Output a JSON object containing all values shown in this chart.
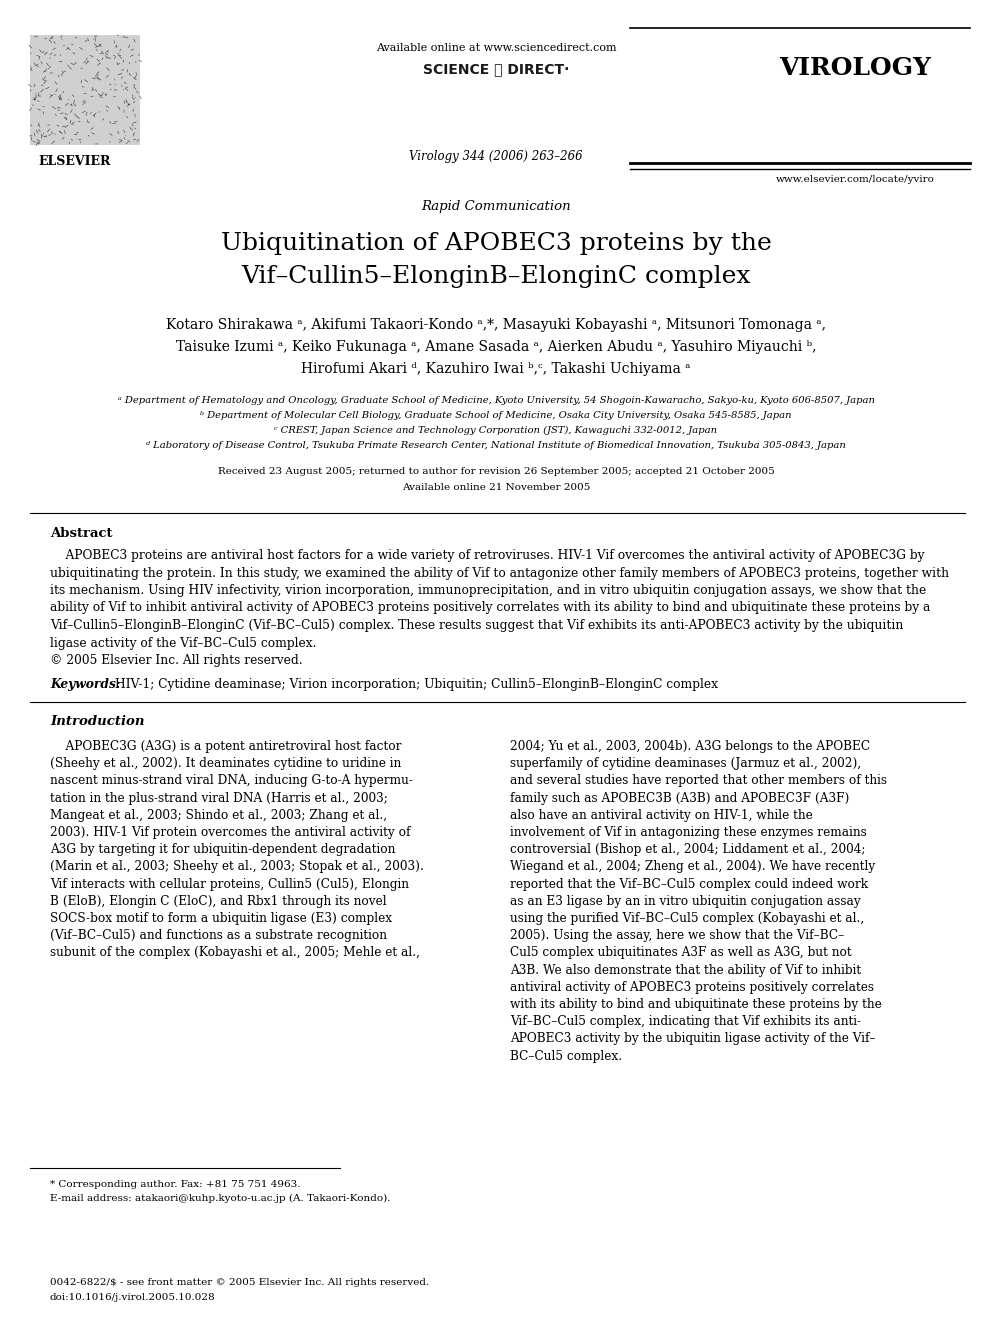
{
  "bg_color": "#ffffff",
  "fig_width": 9.92,
  "fig_height": 13.23,
  "available_online_text": "Available online at www.sciencedirect.com",
  "sciencedirect_text": "SCIENCE ⓐ DIRECT·",
  "virology_text": "VIROLOGY",
  "journal_ref_text": "Virology 344 (2006) 263–266",
  "website_text": "www.elsevier.com/locate/yviro",
  "elsevier_text": "ELSEVIER",
  "rapid_comm_text": "Rapid Communication",
  "title_line1": "Ubiquitination of APOBEC3 proteins by the",
  "title_line2": "Vif–Cullin5–ElonginB–ElonginC complex",
  "authors_line1": "Kotaro Shirakawa ᵃ, Akifumi Takaori-Kondo ᵃ,*, Masayuki Kobayashi ᵃ, Mitsunori Tomonaga ᵃ,",
  "authors_line2": "Taisuke Izumi ᵃ, Keiko Fukunaga ᵃ, Amane Sasada ᵃ, Aierken Abudu ᵃ, Yasuhiro Miyauchi ᵇ,",
  "authors_line3": "Hirofumi Akari ᵈ, Kazuhiro Iwai ᵇ,ᶜ, Takashi Uchiyama ᵃ",
  "affil_a": "ᵃ Department of Hematology and Oncology, Graduate School of Medicine, Kyoto University, 54 Shogoin-Kawaracho, Sakyo-ku, Kyoto 606-8507, Japan",
  "affil_b": "ᵇ Department of Molecular Cell Biology, Graduate School of Medicine, Osaka City University, Osaka 545-8585, Japan",
  "affil_c": "ᶜ CREST, Japan Science and Technology Corporation (JST), Kawaguchi 332-0012, Japan",
  "affil_d": "ᵈ Laboratory of Disease Control, Tsukuba Primate Research Center, National Institute of Biomedical Innovation, Tsukuba 305-0843, Japan",
  "received_text": "Received 23 August 2005; returned to author for revision 26 September 2005; accepted 21 October 2005",
  "available_text2": "Available online 21 November 2005",
  "abstract_label": "Abstract",
  "abstract_text": "    APOBEC3 proteins are antiviral host factors for a wide variety of retroviruses. HIV-1 Vif overcomes the antiviral activity of APOBEC3G by\nubiquitinating the protein. In this study, we examined the ability of Vif to antagonize other family members of APOBEC3 proteins, together with\nits mechanism. Using HIV infectivity, virion incorporation, immunoprecipitation, and in vitro ubiquitin conjugation assays, we show that the\nability of Vif to inhibit antiviral activity of APOBEC3 proteins positively correlates with its ability to bind and ubiquitinate these proteins by a\nVif–Cullin5–ElonginB–ElonginC (Vif–BC–Cul5) complex. These results suggest that Vif exhibits its anti-APOBEC3 activity by the ubiquitin\nligase activity of the Vif–BC–Cul5 complex.\n© 2005 Elsevier Inc. All rights reserved.",
  "keywords_label": "Keywords: ",
  "keywords_text": "HIV-1; Cytidine deaminase; Virion incorporation; Ubiquitin; Cullin5–ElonginB–ElonginC complex",
  "intro_label": "Introduction",
  "intro_left_text": "    APOBEC3G (A3G) is a potent antiretroviral host factor\n(Sheehy et al., 2002). It deaminates cytidine to uridine in\nnascent minus-strand viral DNA, inducing G-to-A hypermu-\ntation in the plus-strand viral DNA (Harris et al., 2003;\nMangeat et al., 2003; Shindo et al., 2003; Zhang et al.,\n2003). HIV-1 Vif protein overcomes the antiviral activity of\nA3G by targeting it for ubiquitin-dependent degradation\n(Marin et al., 2003; Sheehy et al., 2003; Stopak et al., 2003).\nVif interacts with cellular proteins, Cullin5 (Cul5), Elongin\nB (EloB), Elongin C (EloC), and Rbx1 through its novel\nSOCS-box motif to form a ubiquitin ligase (E3) complex\n(Vif–BC–Cul5) and functions as a substrate recognition\nsubunit of the complex (Kobayashi et al., 2005; Mehle et al.,",
  "intro_right_text": "2004; Yu et al., 2003, 2004b). A3G belongs to the APOBEC\nsuperfamily of cytidine deaminases (Jarmuz et al., 2002),\nand several studies have reported that other members of this\nfamily such as APOBEC3B (A3B) and APOBEC3F (A3F)\nalso have an antiviral activity on HIV-1, while the\ninvolvement of Vif in antagonizing these enzymes remains\ncontroversial (Bishop et al., 2004; Liddament et al., 2004;\nWiegand et al., 2004; Zheng et al., 2004). We have recently\nreported that the Vif–BC–Cul5 complex could indeed work\nas an E3 ligase by an in vitro ubiquitin conjugation assay\nusing the purified Vif–BC–Cul5 complex (Kobayashi et al.,\n2005). Using the assay, here we show that the Vif–BC–\nCul5 complex ubiquitinates A3F as well as A3G, but not\nA3B. We also demonstrate that the ability of Vif to inhibit\nantiviral activity of APOBEC3 proteins positively correlates\nwith its ability to bind and ubiquitinate these proteins by the\nVif–BC–Cul5 complex, indicating that Vif exhibits its anti-\nAPOBEC3 activity by the ubiquitin ligase activity of the Vif–\nBC–Cul5 complex.",
  "footnote_star_text": "* Corresponding author. Fax: +81 75 751 4963.",
  "footnote_email_text": "E-mail address: atakaori@kuhp.kyoto-u.ac.jp (A. Takaori-Kondo).",
  "bottom_text1": "0042-6822/$ - see front matter © 2005 Elsevier Inc. All rights reserved.",
  "bottom_text2": "doi:10.1016/j.virol.2005.10.028",
  "red_color": "#cc2200",
  "link_color": "#cc0000"
}
